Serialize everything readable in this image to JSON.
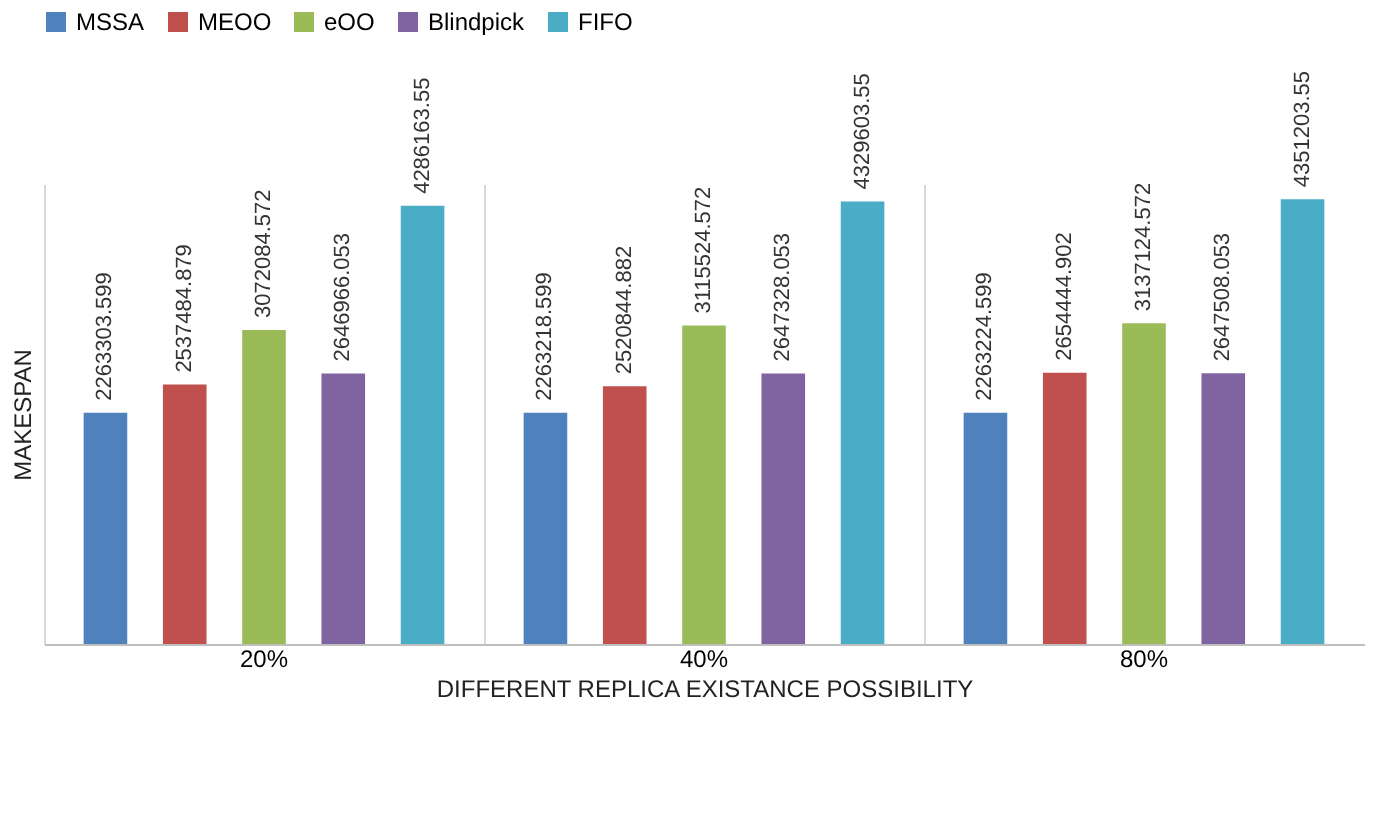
{
  "chart_data": {
    "type": "bar",
    "xlabel": "DIFFERENT REPLICA EXISTANCE POSSIBILITY",
    "ylabel": "MAKESPAN",
    "categories": [
      "20%",
      "40%",
      "80%"
    ],
    "legend": "top",
    "data_labels": true,
    "series": [
      {
        "name": "MSSA",
        "color": "#4f81bd",
        "values": [
          2263303.599,
          2263218.599,
          2263224.599
        ]
      },
      {
        "name": "MEOO",
        "color": "#c0504d",
        "values": [
          2537484.879,
          2520844.882,
          2654444.902
        ]
      },
      {
        "name": "eOO",
        "color": "#9bbb59",
        "values": [
          3072084.572,
          3115524.572,
          3137124.572
        ]
      },
      {
        "name": "Blindpick",
        "color": "#8064a2",
        "values": [
          2646966.053,
          2647328.053,
          2647508.053
        ]
      },
      {
        "name": "FIFO",
        "color": "#4bacc6",
        "values": [
          4286163.55,
          4329603.55,
          4351203.55
        ]
      }
    ]
  }
}
